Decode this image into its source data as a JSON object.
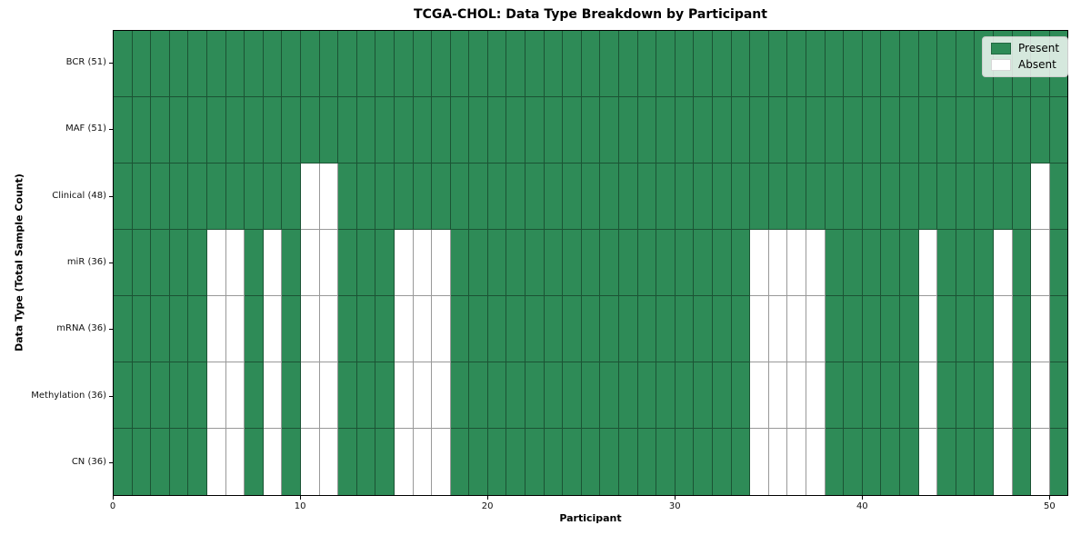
{
  "chart_data": {
    "type": "heatmap",
    "title": "TCGA-CHOL: Data Type Breakdown by Participant",
    "xlabel": "Participant",
    "ylabel": "Data Type (Total Sample Count)",
    "x_ticks": [
      0,
      10,
      20,
      30,
      40,
      50
    ],
    "x_range": [
      0,
      51
    ],
    "n_participants": 51,
    "grid": true,
    "legend_position": "upper right",
    "legend": {
      "entries": [
        {
          "label": "Present",
          "color": "#2e8b57"
        },
        {
          "label": "Absent",
          "color": "#ffffff"
        }
      ]
    },
    "colors": {
      "present": "#2e8b57",
      "absent": "#ffffff",
      "gridline": "rgba(0,0,0,0.40)",
      "spine": "#000000"
    },
    "rows": [
      {
        "label": "BCR (51)",
        "present_count": 51,
        "absent_participants": []
      },
      {
        "label": "MAF (51)",
        "present_count": 51,
        "absent_participants": []
      },
      {
        "label": "Clinical (48)",
        "present_count": 48,
        "absent_participants": [
          10,
          11,
          49
        ]
      },
      {
        "label": "miR (36)",
        "present_count": 36,
        "absent_participants": [
          5,
          6,
          8,
          10,
          11,
          15,
          16,
          17,
          34,
          35,
          36,
          37,
          43,
          47,
          49
        ]
      },
      {
        "label": "mRNA (36)",
        "present_count": 36,
        "absent_participants": [
          5,
          6,
          8,
          10,
          11,
          15,
          16,
          17,
          34,
          35,
          36,
          37,
          43,
          47,
          49
        ]
      },
      {
        "label": "Methylation (36)",
        "present_count": 36,
        "absent_participants": [
          5,
          6,
          8,
          10,
          11,
          15,
          16,
          17,
          34,
          35,
          36,
          37,
          43,
          47,
          49
        ]
      },
      {
        "label": "CN (36)",
        "present_count": 36,
        "absent_participants": [
          5,
          6,
          8,
          10,
          11,
          15,
          16,
          17,
          34,
          35,
          36,
          37,
          43,
          47,
          49
        ]
      }
    ]
  }
}
